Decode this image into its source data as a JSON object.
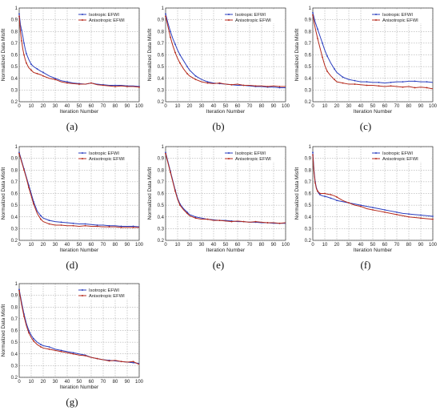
{
  "chart_data": [
    {
      "type": "line",
      "panel_label": "(a)",
      "xlabel": "Iteration Number",
      "ylabel": "Normalized Data Misfit",
      "xlim": [
        0,
        100
      ],
      "ylim": [
        0.2,
        1.0
      ],
      "x_ticks": [
        0,
        10,
        20,
        30,
        40,
        50,
        60,
        70,
        80,
        90,
        100
      ],
      "y_ticks": [
        0.2,
        0.3,
        0.4,
        0.5,
        0.6,
        0.7,
        0.8,
        0.9,
        1.0
      ],
      "grid": true,
      "legend_position": "top-right",
      "series": [
        {
          "name": "Isotropic EFWI",
          "color": "#2b3fbf",
          "x": [
            0,
            1,
            2,
            3,
            4,
            5,
            6,
            8,
            10,
            12,
            15,
            18,
            20,
            25,
            30,
            35,
            40,
            45,
            50,
            55,
            60,
            65,
            70,
            75,
            80,
            85,
            90,
            95,
            100
          ],
          "y": [
            0.95,
            0.86,
            0.81,
            0.76,
            0.7,
            0.65,
            0.61,
            0.56,
            0.52,
            0.5,
            0.48,
            0.46,
            0.45,
            0.42,
            0.4,
            0.38,
            0.37,
            0.36,
            0.355,
            0.35,
            0.36,
            0.35,
            0.345,
            0.34,
            0.34,
            0.34,
            0.335,
            0.335,
            0.33
          ]
        },
        {
          "name": "Anisotropic EFWI",
          "color": "#b52a1c",
          "x": [
            0,
            1,
            2,
            3,
            4,
            5,
            6,
            8,
            10,
            12,
            15,
            18,
            20,
            25,
            30,
            35,
            40,
            45,
            50,
            55,
            60,
            65,
            70,
            75,
            80,
            85,
            90,
            95,
            100
          ],
          "y": [
            0.93,
            0.8,
            0.72,
            0.65,
            0.6,
            0.56,
            0.53,
            0.49,
            0.47,
            0.45,
            0.44,
            0.43,
            0.42,
            0.4,
            0.39,
            0.37,
            0.36,
            0.355,
            0.35,
            0.35,
            0.36,
            0.345,
            0.34,
            0.335,
            0.33,
            0.335,
            0.33,
            0.33,
            0.325
          ]
        }
      ]
    },
    {
      "type": "line",
      "panel_label": "(b)",
      "xlabel": "Iteration Number",
      "ylabel": "Normalized Data Misfit",
      "xlim": [
        0,
        100
      ],
      "ylim": [
        0.2,
        1.0
      ],
      "x_ticks": [
        0,
        10,
        20,
        30,
        40,
        50,
        60,
        70,
        80,
        90,
        100
      ],
      "y_ticks": [
        0.2,
        0.3,
        0.4,
        0.5,
        0.6,
        0.7,
        0.8,
        0.9,
        1.0
      ],
      "grid": true,
      "legend_position": "top-right",
      "series": [
        {
          "name": "Isotropic EFWI",
          "color": "#2b3fbf",
          "x": [
            0,
            2,
            4,
            6,
            8,
            10,
            12,
            15,
            18,
            20,
            25,
            30,
            35,
            40,
            45,
            50,
            55,
            60,
            65,
            70,
            75,
            80,
            85,
            90,
            95,
            100
          ],
          "y": [
            0.95,
            0.87,
            0.8,
            0.74,
            0.69,
            0.64,
            0.6,
            0.55,
            0.5,
            0.47,
            0.42,
            0.39,
            0.37,
            0.36,
            0.355,
            0.35,
            0.345,
            0.34,
            0.34,
            0.335,
            0.33,
            0.33,
            0.325,
            0.325,
            0.32,
            0.32
          ]
        },
        {
          "name": "Anisotropic EFWI",
          "color": "#b52a1c",
          "x": [
            0,
            2,
            4,
            6,
            8,
            10,
            12,
            15,
            18,
            20,
            25,
            30,
            35,
            40,
            45,
            50,
            55,
            60,
            65,
            70,
            75,
            80,
            85,
            90,
            95,
            100
          ],
          "y": [
            0.93,
            0.84,
            0.75,
            0.68,
            0.62,
            0.57,
            0.53,
            0.48,
            0.44,
            0.42,
            0.39,
            0.37,
            0.36,
            0.355,
            0.36,
            0.35,
            0.345,
            0.35,
            0.34,
            0.34,
            0.335,
            0.335,
            0.33,
            0.335,
            0.33,
            0.33
          ]
        }
      ]
    },
    {
      "type": "line",
      "panel_label": "(c)",
      "xlabel": "Iteration Number",
      "ylabel": "Normalized Data Misfit",
      "xlim": [
        0,
        100
      ],
      "ylim": [
        0.2,
        1.0
      ],
      "x_ticks": [
        0,
        10,
        20,
        30,
        40,
        50,
        60,
        70,
        80,
        90,
        100
      ],
      "y_ticks": [
        0.2,
        0.3,
        0.4,
        0.5,
        0.6,
        0.7,
        0.8,
        0.9,
        1.0
      ],
      "grid": true,
      "legend_position": "top-right",
      "series": [
        {
          "name": "Isotropic EFWI",
          "color": "#2b3fbf",
          "x": [
            0,
            2,
            4,
            6,
            8,
            10,
            12,
            15,
            18,
            20,
            25,
            30,
            35,
            40,
            45,
            50,
            55,
            60,
            65,
            70,
            75,
            80,
            85,
            90,
            95,
            100
          ],
          "y": [
            0.96,
            0.88,
            0.82,
            0.76,
            0.7,
            0.64,
            0.59,
            0.53,
            0.48,
            0.45,
            0.41,
            0.39,
            0.38,
            0.37,
            0.37,
            0.365,
            0.365,
            0.36,
            0.365,
            0.37,
            0.37,
            0.375,
            0.375,
            0.37,
            0.37,
            0.365
          ]
        },
        {
          "name": "Anisotropic EFWI",
          "color": "#b52a1c",
          "x": [
            0,
            2,
            4,
            6,
            8,
            10,
            12,
            15,
            18,
            20,
            25,
            30,
            35,
            40,
            45,
            50,
            55,
            60,
            65,
            70,
            75,
            80,
            85,
            90,
            95,
            100
          ],
          "y": [
            0.94,
            0.83,
            0.74,
            0.66,
            0.58,
            0.51,
            0.46,
            0.42,
            0.39,
            0.37,
            0.36,
            0.35,
            0.35,
            0.345,
            0.34,
            0.34,
            0.335,
            0.33,
            0.335,
            0.33,
            0.325,
            0.33,
            0.32,
            0.325,
            0.32,
            0.31
          ]
        }
      ]
    },
    {
      "type": "line",
      "panel_label": "(d)",
      "xlabel": "Iteration Number",
      "ylabel": "Normalized Data Misfit",
      "xlim": [
        0,
        100
      ],
      "ylim": [
        0.2,
        1.0
      ],
      "x_ticks": [
        0,
        10,
        20,
        30,
        40,
        50,
        60,
        70,
        80,
        90,
        100
      ],
      "y_ticks": [
        0.2,
        0.3,
        0.4,
        0.5,
        0.6,
        0.7,
        0.8,
        0.9,
        1.0
      ],
      "grid": true,
      "legend_position": "top-right",
      "series": [
        {
          "name": "Isotropic EFWI",
          "color": "#2b3fbf",
          "x": [
            0,
            2,
            4,
            6,
            8,
            10,
            12,
            15,
            18,
            20,
            25,
            30,
            35,
            40,
            45,
            50,
            55,
            60,
            65,
            70,
            75,
            80,
            85,
            90,
            95,
            100
          ],
          "y": [
            0.95,
            0.88,
            0.81,
            0.74,
            0.67,
            0.6,
            0.53,
            0.45,
            0.41,
            0.39,
            0.37,
            0.36,
            0.355,
            0.35,
            0.345,
            0.34,
            0.34,
            0.335,
            0.33,
            0.33,
            0.325,
            0.325,
            0.32,
            0.32,
            0.32,
            0.315
          ]
        },
        {
          "name": "Anisotropic EFWI",
          "color": "#b52a1c",
          "x": [
            0,
            2,
            4,
            6,
            8,
            10,
            12,
            15,
            18,
            20,
            25,
            30,
            35,
            40,
            45,
            50,
            55,
            60,
            65,
            70,
            75,
            80,
            85,
            90,
            95,
            100
          ],
          "y": [
            0.94,
            0.87,
            0.8,
            0.73,
            0.65,
            0.58,
            0.51,
            0.43,
            0.38,
            0.36,
            0.34,
            0.33,
            0.33,
            0.325,
            0.325,
            0.32,
            0.325,
            0.32,
            0.32,
            0.315,
            0.315,
            0.315,
            0.31,
            0.31,
            0.31,
            0.31
          ]
        }
      ]
    },
    {
      "type": "line",
      "panel_label": "(e)",
      "xlabel": "Iteration Number",
      "ylabel": "Normalized Data Misfit",
      "xlim": [
        0,
        100
      ],
      "ylim": [
        0.2,
        1.0
      ],
      "x_ticks": [
        0,
        10,
        20,
        30,
        40,
        50,
        60,
        70,
        80,
        90,
        100
      ],
      "y_ticks": [
        0.2,
        0.3,
        0.4,
        0.5,
        0.6,
        0.7,
        0.8,
        0.9,
        1.0
      ],
      "grid": true,
      "legend_position": "top-right",
      "series": [
        {
          "name": "Isotropic EFWI",
          "color": "#2b3fbf",
          "x": [
            0,
            2,
            4,
            6,
            8,
            10,
            12,
            15,
            18,
            20,
            25,
            30,
            35,
            40,
            45,
            50,
            55,
            60,
            65,
            70,
            75,
            80,
            85,
            90,
            95,
            100
          ],
          "y": [
            0.95,
            0.87,
            0.79,
            0.71,
            0.63,
            0.56,
            0.51,
            0.47,
            0.44,
            0.42,
            0.4,
            0.39,
            0.38,
            0.375,
            0.37,
            0.37,
            0.365,
            0.36,
            0.36,
            0.355,
            0.355,
            0.35,
            0.35,
            0.345,
            0.345,
            0.345
          ]
        },
        {
          "name": "Anisotropic EFWI",
          "color": "#b52a1c",
          "x": [
            0,
            2,
            4,
            6,
            8,
            10,
            12,
            15,
            18,
            20,
            25,
            30,
            35,
            40,
            45,
            50,
            55,
            60,
            65,
            70,
            75,
            80,
            85,
            90,
            95,
            100
          ],
          "y": [
            0.94,
            0.86,
            0.78,
            0.7,
            0.62,
            0.55,
            0.5,
            0.46,
            0.43,
            0.41,
            0.39,
            0.38,
            0.38,
            0.37,
            0.37,
            0.365,
            0.36,
            0.365,
            0.36,
            0.355,
            0.36,
            0.355,
            0.35,
            0.35,
            0.345,
            0.35
          ]
        }
      ]
    },
    {
      "type": "line",
      "panel_label": "(f)",
      "xlabel": "Iteration Number",
      "ylabel": "Normalized Data Misfit",
      "xlim": [
        0,
        100
      ],
      "ylim": [
        0.2,
        1.0
      ],
      "x_ticks": [
        0,
        10,
        20,
        30,
        40,
        50,
        60,
        70,
        80,
        90,
        100
      ],
      "y_ticks": [
        0.2,
        0.3,
        0.4,
        0.5,
        0.6,
        0.7,
        0.8,
        0.9,
        1.0
      ],
      "grid": true,
      "legend_position": "top-right",
      "series": [
        {
          "name": "Isotropic EFWI",
          "color": "#2b3fbf",
          "x": [
            0,
            1,
            2,
            3,
            4,
            5,
            6,
            8,
            10,
            12,
            15,
            18,
            20,
            25,
            30,
            35,
            40,
            45,
            50,
            55,
            60,
            65,
            70,
            75,
            80,
            85,
            90,
            95,
            100
          ],
          "y": [
            0.95,
            0.8,
            0.7,
            0.65,
            0.62,
            0.6,
            0.59,
            0.58,
            0.575,
            0.57,
            0.56,
            0.55,
            0.54,
            0.53,
            0.52,
            0.51,
            0.5,
            0.49,
            0.48,
            0.47,
            0.46,
            0.45,
            0.44,
            0.43,
            0.425,
            0.42,
            0.415,
            0.41,
            0.405
          ]
        },
        {
          "name": "Anisotropic EFWI",
          "color": "#b52a1c",
          "x": [
            0,
            1,
            2,
            3,
            4,
            5,
            6,
            8,
            10,
            12,
            15,
            18,
            20,
            25,
            30,
            35,
            40,
            45,
            50,
            55,
            60,
            65,
            70,
            75,
            80,
            85,
            90,
            95,
            100
          ],
          "y": [
            0.93,
            0.78,
            0.69,
            0.64,
            0.62,
            0.61,
            0.6,
            0.6,
            0.6,
            0.595,
            0.59,
            0.58,
            0.57,
            0.54,
            0.52,
            0.5,
            0.49,
            0.47,
            0.46,
            0.45,
            0.44,
            0.43,
            0.42,
            0.41,
            0.4,
            0.395,
            0.39,
            0.385,
            0.38
          ]
        }
      ]
    },
    {
      "type": "line",
      "panel_label": "(g)",
      "xlabel": "Iteration Number",
      "ylabel": "Normalized Data Misfit",
      "xlim": [
        0,
        100
      ],
      "ylim": [
        0.2,
        1.0
      ],
      "x_ticks": [
        0,
        10,
        20,
        30,
        40,
        50,
        60,
        70,
        80,
        90,
        100
      ],
      "y_ticks": [
        0.2,
        0.3,
        0.4,
        0.5,
        0.6,
        0.7,
        0.8,
        0.9,
        1.0
      ],
      "grid": true,
      "legend_position": "top-right",
      "series": [
        {
          "name": "Isotropic EFWI",
          "color": "#2b3fbf",
          "x": [
            0,
            2,
            4,
            6,
            8,
            10,
            12,
            15,
            18,
            20,
            25,
            30,
            35,
            40,
            45,
            50,
            55,
            60,
            65,
            70,
            75,
            80,
            85,
            90,
            95,
            100
          ],
          "y": [
            0.95,
            0.84,
            0.74,
            0.66,
            0.6,
            0.56,
            0.53,
            0.5,
            0.48,
            0.47,
            0.46,
            0.44,
            0.43,
            0.42,
            0.41,
            0.4,
            0.39,
            0.37,
            0.36,
            0.35,
            0.345,
            0.34,
            0.335,
            0.33,
            0.325,
            0.32
          ]
        },
        {
          "name": "Anisotropic EFWI",
          "color": "#b52a1c",
          "x": [
            0,
            2,
            4,
            6,
            8,
            10,
            12,
            15,
            18,
            20,
            25,
            30,
            35,
            40,
            45,
            50,
            55,
            60,
            65,
            70,
            75,
            80,
            85,
            90,
            95,
            100
          ],
          "y": [
            0.94,
            0.82,
            0.72,
            0.64,
            0.58,
            0.54,
            0.51,
            0.48,
            0.46,
            0.45,
            0.44,
            0.43,
            0.42,
            0.41,
            0.4,
            0.39,
            0.385,
            0.37,
            0.36,
            0.35,
            0.34,
            0.345,
            0.335,
            0.33,
            0.335,
            0.31
          ]
        }
      ]
    }
  ]
}
